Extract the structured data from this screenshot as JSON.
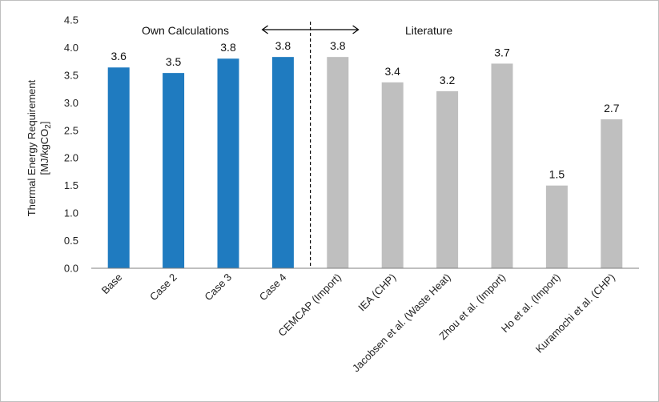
{
  "chart_data": {
    "type": "bar",
    "categories": [
      "Base",
      "Case 2",
      "Case 3",
      "Case 4",
      "CEMCAP (Import)",
      "IEA (CHP)",
      "Jacobsen et al. (Waste Heat)",
      "Zhou et al. (Import)",
      "Ho et al. (Import)",
      "Kuramochi et al. (CHP)"
    ],
    "values": [
      3.64,
      3.54,
      3.8,
      3.83,
      3.83,
      3.37,
      3.21,
      3.71,
      1.5,
      2.7
    ],
    "data_labels": [
      "3.6",
      "3.5",
      "3.8",
      "3.8",
      "3.8",
      "3.4",
      "3.2",
      "3.7",
      "1.5",
      "2.7"
    ],
    "bar_colors": [
      "#1f7bc0",
      "#1f7bc0",
      "#1f7bc0",
      "#1f7bc0",
      "#bfbfbf",
      "#bfbfbf",
      "#bfbfbf",
      "#bfbfbf",
      "#bfbfbf",
      "#bfbfbf"
    ],
    "ylabel_line1": "Thermal Energy Requirement",
    "ylabel_line2_prefix": "[MJ/kgCO",
    "ylabel_line2_sub": "2",
    "ylabel_line2_suffix": "]",
    "ylim": [
      0,
      4.5
    ],
    "yticks": [
      "0.0",
      "0.5",
      "1.0",
      "1.5",
      "2.0",
      "2.5",
      "3.0",
      "3.5",
      "4.0",
      "4.5"
    ],
    "grid": false,
    "annotations": {
      "left_group": "Own Calculations",
      "right_group": "Literature"
    }
  }
}
